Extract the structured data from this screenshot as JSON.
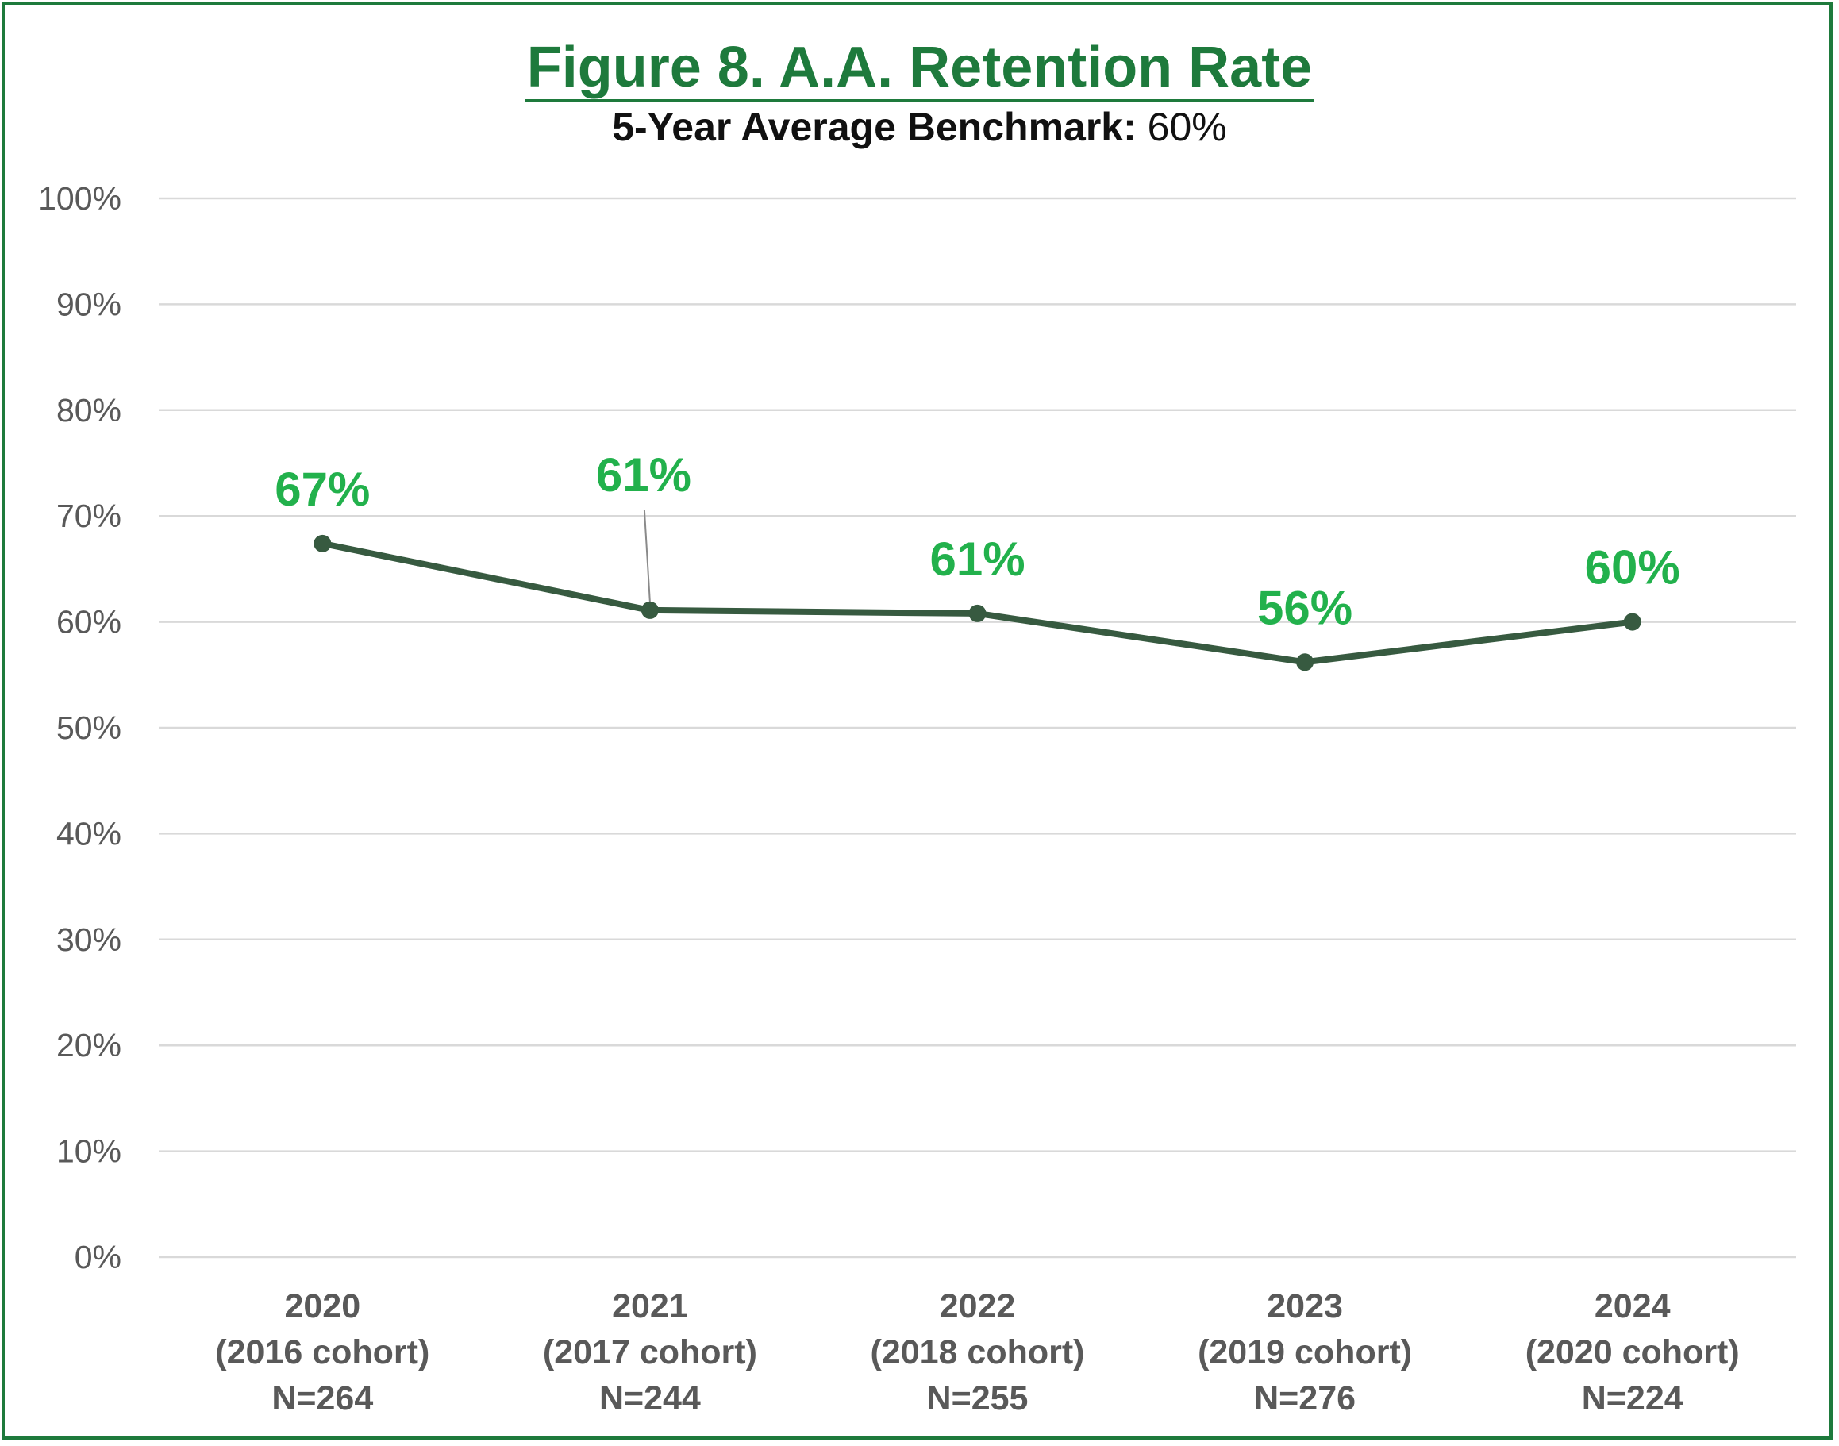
{
  "chart_data": {
    "type": "line",
    "title": "Figure 8. A.A. Retention Rate",
    "subtitle_label": "5-Year Average Benchmark:",
    "subtitle_value": "60%",
    "categories": [
      [
        "2020",
        "(2016 cohort)",
        "N=264"
      ],
      [
        "2021",
        "(2017 cohort)",
        "N=244"
      ],
      [
        "2022",
        "(2018 cohort)",
        "N=255"
      ],
      [
        "2023",
        "(2019 cohort)",
        "N=276"
      ],
      [
        "2024",
        "(2020 cohort)",
        "N=224"
      ]
    ],
    "series": [
      {
        "name": "A.A. Retention Rate",
        "values": [
          67.4,
          61.1,
          60.8,
          56.2,
          60.0
        ],
        "data_labels": [
          "67%",
          "61%",
          "61%",
          "56%",
          "60%"
        ]
      }
    ],
    "y_ticks": [
      "0%",
      "10%",
      "20%",
      "30%",
      "40%",
      "50%",
      "60%",
      "70%",
      "80%",
      "90%",
      "100%"
    ],
    "ylim": [
      0,
      100
    ],
    "xlabel": "",
    "ylabel": "",
    "grid": true,
    "legend": "none",
    "colors": {
      "frame": "#1e7a3c",
      "title": "#1e7a3c",
      "line": "#375a40",
      "data_label": "#22b14c",
      "grid": "#d9d9d9",
      "tick_text": "#595959"
    }
  }
}
